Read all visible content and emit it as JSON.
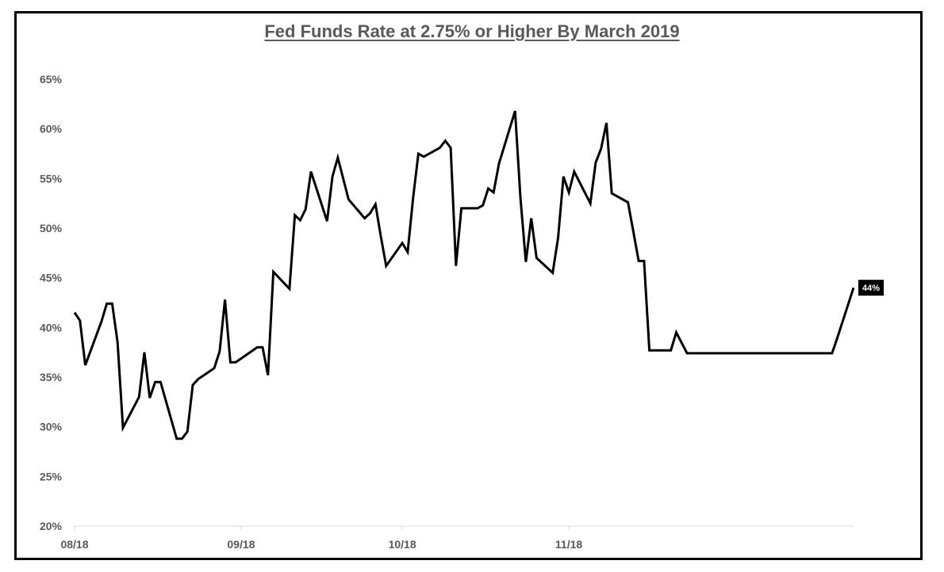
{
  "chart_data": {
    "type": "line",
    "title": "Fed Funds Rate at 2.75% or Higher By March 2019",
    "xlabel": "",
    "ylabel": "",
    "ylim": [
      20,
      65
    ],
    "y_ticks": [
      20,
      25,
      30,
      35,
      40,
      45,
      50,
      55,
      60,
      65
    ],
    "y_tick_labels": [
      "20%",
      "25%",
      "30%",
      "35%",
      "40%",
      "45%",
      "50%",
      "55%",
      "60%",
      "65%"
    ],
    "x_range": [
      "2018-08-01",
      "2018-12-24"
    ],
    "x_ticks": [
      "2018-08-01",
      "2018-09-01",
      "2018-10-01",
      "2018-11-01"
    ],
    "x_tick_labels": [
      "08/18",
      "09/18",
      "10/18",
      "11/18"
    ],
    "grid": false,
    "legend": "none",
    "line_color": "#000000",
    "end_label": "44%",
    "series": [
      {
        "x": [
          "2018-08-01",
          "2018-08-02",
          "2018-08-03",
          "2018-08-06",
          "2018-08-07",
          "2018-08-08",
          "2018-08-09",
          "2018-08-10",
          "2018-08-13",
          "2018-08-14",
          "2018-08-15",
          "2018-08-16",
          "2018-08-17",
          "2018-08-20",
          "2018-08-21",
          "2018-08-22",
          "2018-08-23",
          "2018-08-24",
          "2018-08-27",
          "2018-08-28",
          "2018-08-29",
          "2018-08-30",
          "2018-08-31",
          "2018-09-04",
          "2018-09-05",
          "2018-09-06",
          "2018-09-07",
          "2018-09-10",
          "2018-09-11",
          "2018-09-12",
          "2018-09-13",
          "2018-09-14",
          "2018-09-17",
          "2018-09-18",
          "2018-09-19",
          "2018-09-20",
          "2018-09-21",
          "2018-09-24",
          "2018-09-25",
          "2018-09-26",
          "2018-09-27",
          "2018-09-28",
          "2018-10-01",
          "2018-10-02",
          "2018-10-03",
          "2018-10-04",
          "2018-10-05",
          "2018-10-08",
          "2018-10-09",
          "2018-10-10",
          "2018-10-11",
          "2018-10-12",
          "2018-10-15",
          "2018-10-16",
          "2018-10-17",
          "2018-10-18",
          "2018-10-19",
          "2018-10-22",
          "2018-10-23",
          "2018-10-24",
          "2018-10-25",
          "2018-10-26",
          "2018-10-29",
          "2018-10-30",
          "2018-10-31",
          "2018-11-01",
          "2018-11-02",
          "2018-11-05",
          "2018-11-06",
          "2018-11-07",
          "2018-11-08",
          "2018-11-09",
          "2018-11-12",
          "2018-11-13",
          "2018-11-14",
          "2018-11-15",
          "2018-11-16",
          "2018-11-19",
          "2018-11-20",
          "2018-11-21",
          "2018-11-23",
          "2018-11-26",
          "2018-11-27",
          "2018-11-28",
          "2018-11-29",
          "2018-11-30",
          "2018-12-03",
          "2018-12-04",
          "2018-12-05",
          "2018-12-06",
          "2018-12-07",
          "2018-12-10",
          "2018-12-11",
          "2018-12-12",
          "2018-12-13",
          "2018-12-14",
          "2018-12-17",
          "2018-12-18",
          "2018-12-19",
          "2018-12-20",
          "2018-12-21",
          "2018-12-24"
        ],
        "y": [
          41.5,
          40.7,
          36.2,
          40.6,
          42.4,
          42.4,
          38.5,
          29.9,
          33.0,
          37.5,
          32.9,
          34.5,
          34.5,
          28.8,
          28.8,
          29.5,
          34.2,
          34.8,
          35.9,
          37.6,
          42.8,
          36.5,
          36.5,
          38.0,
          38.0,
          35.2,
          45.6,
          43.9,
          51.3,
          50.8,
          51.9,
          55.7,
          50.7,
          55.2,
          57.1,
          55.0,
          52.9,
          51.0,
          51.5,
          52.4,
          49.2,
          46.2,
          48.5,
          47.6,
          53.0,
          57.5,
          57.2,
          58.1,
          58.8,
          58.1,
          46.2,
          52.0,
          52.0,
          52.3,
          54.0,
          53.6,
          56.5,
          61.8,
          53.0,
          46.6,
          51.0,
          47.0,
          45.5,
          49.0,
          55.2,
          53.6,
          55.7,
          52.5,
          56.6,
          58.0,
          60.6,
          53.5,
          52.6,
          49.7,
          46.7,
          46.7,
          37.7,
          37.7,
          37.7,
          39.5,
          37.4,
          37.4,
          37.4,
          37.4,
          37.4,
          37.4,
          37.4,
          37.4,
          37.4,
          37.4,
          37.4,
          37.4,
          37.4,
          37.4,
          37.4,
          37.4,
          37.4,
          37.4,
          37.4,
          37.4,
          39.0,
          44.0
        ]
      }
    ]
  }
}
